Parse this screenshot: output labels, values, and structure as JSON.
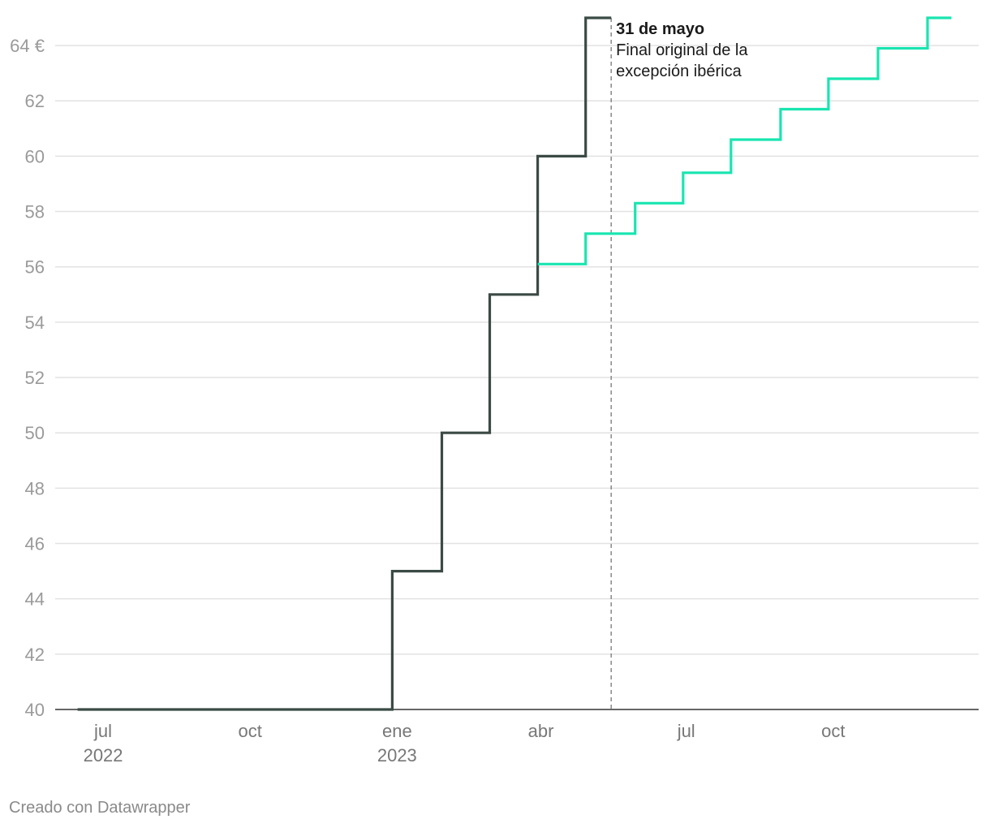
{
  "chart_data": {
    "type": "line",
    "step": true,
    "title": "",
    "xlabel": "",
    "ylabel": "",
    "ylim": [
      40,
      65
    ],
    "y_ticks": [
      40,
      42,
      44,
      46,
      48,
      50,
      52,
      54,
      56,
      58,
      60,
      62,
      64
    ],
    "y_tick_labels": [
      "40",
      "42",
      "44",
      "46",
      "48",
      "50",
      "52",
      "54",
      "56",
      "58",
      "60",
      "62",
      "64 €"
    ],
    "x_range": [
      "2022-06-01",
      "2023-12-31"
    ],
    "x_ticks": [
      {
        "date": "2022-07-01",
        "label": "jul",
        "sublabel": "2022"
      },
      {
        "date": "2022-10-01",
        "label": "oct",
        "sublabel": ""
      },
      {
        "date": "2023-01-01",
        "label": "ene",
        "sublabel": "2023"
      },
      {
        "date": "2023-04-01",
        "label": "abr",
        "sublabel": ""
      },
      {
        "date": "2023-07-01",
        "label": "jul",
        "sublabel": ""
      },
      {
        "date": "2023-10-01",
        "label": "oct",
        "sublabel": ""
      }
    ],
    "grid": true,
    "series": [
      {
        "color": "#3b4a45",
        "points": [
          [
            "2022-06-15",
            40
          ],
          [
            "2022-12-29",
            45
          ],
          [
            "2023-01-29",
            50
          ],
          [
            "2023-02-28",
            55
          ],
          [
            "2023-03-30",
            60
          ],
          [
            "2023-04-29",
            65
          ],
          [
            "2023-05-15",
            65
          ]
        ]
      },
      {
        "color": "#19e5b0",
        "points": [
          [
            "2023-03-30",
            56.1
          ],
          [
            "2023-04-29",
            57.2
          ],
          [
            "2023-05-30",
            58.3
          ],
          [
            "2023-06-29",
            59.4
          ],
          [
            "2023-07-29",
            60.6
          ],
          [
            "2023-08-29",
            61.7
          ],
          [
            "2023-09-28",
            62.8
          ],
          [
            "2023-10-29",
            63.9
          ],
          [
            "2023-11-29",
            65
          ],
          [
            "2023-12-14",
            65
          ]
        ]
      }
    ],
    "annotation": {
      "date": "2023-05-15",
      "title": "31 de mayo",
      "lines": [
        "Final original de la",
        "excepción ibérica"
      ]
    }
  },
  "credit": "Creado con Datawrapper"
}
